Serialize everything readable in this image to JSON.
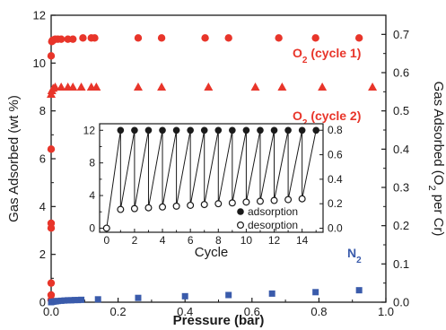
{
  "chart_data": [
    {
      "type": "scatter",
      "xlabel": "Pressure (bar)",
      "ylabel": "Gas Adsorbed (wt %)",
      "y2label_parts": [
        "Gas Adsorbed (O",
        "2",
        " per Cr)"
      ],
      "xlim": [
        0,
        1.0
      ],
      "ylim": [
        0,
        12
      ],
      "y2lim": [
        0,
        0.75
      ],
      "xticks": [
        "0.0",
        "0.2",
        "0.4",
        "0.6",
        "0.8",
        "1.0"
      ],
      "yticks": [
        "0",
        "2",
        "4",
        "6",
        "8",
        "10",
        "12"
      ],
      "y2ticks": [
        "0.0",
        "0.1",
        "0.2",
        "0.3",
        "0.4",
        "0.5",
        "0.6",
        "0.7"
      ],
      "colors": {
        "o2": "#e8352a",
        "n2": "#3a5bab",
        "axis": "#1a1a1a"
      },
      "annotations": [
        {
          "parts": [
            "O",
            "2",
            " (cycle 1)"
          ],
          "color": "#e8352a",
          "series": "o2_cycle1"
        },
        {
          "parts": [
            "O",
            "2",
            " (cycle 2)"
          ],
          "color": "#e8352a",
          "series": "o2_cycle2"
        },
        {
          "parts": [
            "N",
            "2",
            ""
          ],
          "color": "#3a5bab",
          "series": "n2"
        }
      ],
      "series": [
        {
          "key": "o2_cycle1",
          "marker": "circle",
          "x": [
            0.0,
            0.0,
            0.0,
            0.0,
            0.0,
            0.0,
            0.0,
            0.002,
            0.004,
            0.006,
            0.008,
            0.012,
            0.02,
            0.03,
            0.05,
            0.065,
            0.095,
            0.12,
            0.13,
            0.26,
            0.33,
            0.46,
            0.53,
            0.68,
            0.79,
            0.92
          ],
          "y": [
            0.1,
            0.3,
            0.8,
            3.1,
            3.3,
            6.4,
            10.3,
            10.9,
            10.95,
            10.95,
            10.97,
            11.0,
            11.0,
            11.0,
            11.0,
            11.0,
            11.05,
            11.05,
            11.05,
            11.05,
            11.05,
            11.05,
            11.05,
            11.05,
            11.05,
            11.05
          ]
        },
        {
          "key": "o2_cycle2",
          "marker": "triangle",
          "x": [
            0.0,
            0.002,
            0.006,
            0.012,
            0.03,
            0.05,
            0.065,
            0.09,
            0.12,
            0.135,
            0.26,
            0.33,
            0.47,
            0.61,
            0.69,
            0.81,
            0.96
          ],
          "y": [
            8.7,
            8.85,
            8.95,
            9.0,
            9.0,
            9.0,
            9.0,
            9.0,
            9.0,
            9.0,
            9.0,
            9.0,
            9.0,
            9.0,
            9.0,
            9.0,
            9.0
          ]
        },
        {
          "key": "n2",
          "marker": "square",
          "x": [
            0.0,
            0.005,
            0.01,
            0.015,
            0.02,
            0.03,
            0.04,
            0.05,
            0.06,
            0.07,
            0.08,
            0.09,
            0.14,
            0.26,
            0.4,
            0.53,
            0.66,
            0.79,
            0.92
          ],
          "y": [
            0.0,
            0.02,
            0.03,
            0.04,
            0.05,
            0.06,
            0.07,
            0.08,
            0.08,
            0.09,
            0.09,
            0.1,
            0.12,
            0.18,
            0.25,
            0.3,
            0.36,
            0.42,
            0.5
          ]
        }
      ]
    },
    {
      "type": "line",
      "xlabel": "Cycle",
      "xlim": [
        -0.5,
        15.5
      ],
      "ylim": [
        -0.5,
        12.8
      ],
      "y2lim": [
        -0.033,
        0.853
      ],
      "xticks": [
        "0",
        "2",
        "4",
        "6",
        "8",
        "10",
        "12",
        "14"
      ],
      "yticks": [
        "0",
        "4",
        "8",
        "12"
      ],
      "y2ticks": [
        "0.0",
        "0.2",
        "0.4",
        "0.6",
        "0.8"
      ],
      "legend_position": "bottom-right",
      "legend": [
        {
          "label": "adsorption",
          "filled": true
        },
        {
          "label": "desorption",
          "filled": false
        }
      ],
      "adsorption": {
        "x": [
          1,
          2,
          3,
          4,
          5,
          6,
          7,
          8,
          9,
          10,
          11,
          12,
          13,
          14,
          15
        ],
        "y": [
          12,
          12,
          12,
          12,
          12,
          12,
          12,
          12,
          12,
          12,
          12,
          12,
          12,
          12,
          12
        ]
      },
      "desorption": {
        "x": [
          0,
          1,
          2,
          3,
          4,
          5,
          6,
          7,
          8,
          9,
          10,
          11,
          12,
          13,
          14
        ],
        "y": [
          0,
          2.3,
          2.4,
          2.5,
          2.6,
          2.7,
          2.8,
          2.9,
          3.0,
          3.1,
          3.2,
          3.3,
          3.4,
          3.5,
          3.6
        ]
      }
    }
  ]
}
